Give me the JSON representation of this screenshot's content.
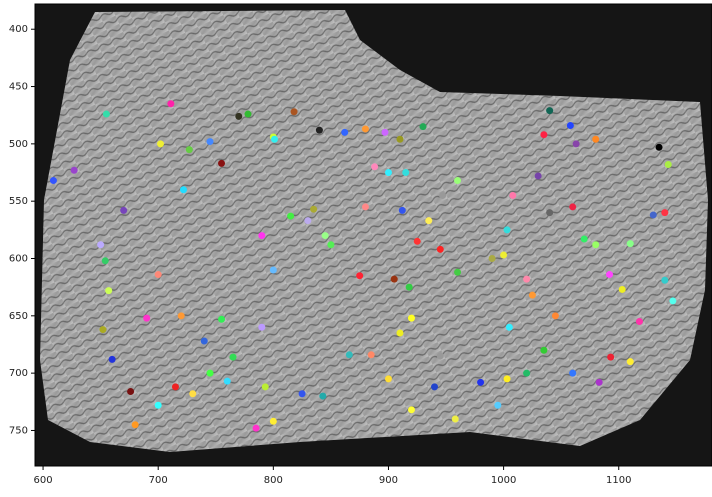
{
  "chart_data": {
    "type": "scatter",
    "x": [
      609,
      627,
      655,
      702,
      711,
      722,
      727,
      745,
      755,
      770,
      778,
      800,
      801,
      818,
      840,
      862,
      880,
      897,
      910,
      930,
      1040,
      1035,
      1058,
      1063,
      1080,
      1135,
      1143,
      1140,
      1130,
      1147,
      1140,
      1110,
      1092,
      1103,
      1118,
      1110,
      1093,
      1083,
      1060,
      1045,
      1035,
      1020,
      1003,
      995,
      980,
      958,
      945,
      940,
      920,
      900,
      885,
      866,
      843,
      825,
      800,
      793,
      785,
      760,
      745,
      730,
      715,
      700,
      680,
      676,
      660,
      652,
      654,
      657,
      650,
      670,
      700,
      690,
      720,
      740,
      755,
      765,
      790,
      800,
      790,
      815,
      830,
      835,
      850,
      875,
      905,
      918,
      910,
      920,
      945,
      960,
      990,
      1000,
      1003,
      1008,
      1030,
      1040,
      1060,
      1070,
      1080,
      1005,
      1020,
      1025,
      960,
      947,
      935,
      925,
      912,
      880,
      900,
      915,
      888,
      845
    ],
    "values": [
      532,
      523,
      474,
      500,
      465,
      540,
      505,
      498,
      517,
      476,
      474,
      494,
      496,
      472,
      488,
      490,
      487,
      490,
      496,
      485,
      471,
      492,
      484,
      500,
      496,
      503,
      518,
      560,
      562,
      637,
      619,
      587,
      614,
      627,
      655,
      690,
      686,
      708,
      700,
      650,
      680,
      700,
      705,
      728,
      708,
      740,
      685,
      712,
      732,
      705,
      684,
      684,
      720,
      718,
      742,
      712,
      748,
      707,
      700,
      718,
      712,
      728,
      745,
      716,
      688,
      662,
      602,
      628,
      588,
      558,
      614,
      652,
      650,
      672,
      653,
      686,
      660,
      610,
      580,
      563,
      567,
      557,
      588,
      615,
      618,
      625,
      665,
      652,
      592,
      612,
      600,
      597,
      575,
      545,
      528,
      560,
      555,
      583,
      588,
      660,
      618,
      632,
      532,
      545,
      567,
      585,
      558,
      555,
      525,
      525,
      520,
      580
    ],
    "colors": [
      "#3355ff",
      "#9944cc",
      "#33ddaa",
      "#eeee33",
      "#ff22aa",
      "#22ddff",
      "#66cc44",
      "#4488ff",
      "#881111",
      "#333322",
      "#33bb33",
      "#ccff33",
      "#33eeee",
      "#aa5522",
      "#222222",
      "#3366ff",
      "#ff9933",
      "#cc66ff",
      "#999922",
      "#22aa55",
      "#116655",
      "#ff2244",
      "#2244ff",
      "#8844aa",
      "#ff8822",
      "#000000",
      "#aaee44",
      "#ff3344",
      "#4466cc",
      "#55ffee",
      "#33cccc",
      "#88ff88",
      "#ff44ff",
      "#eeee22",
      "#ff33aa",
      "#ffee33",
      "#ee2233",
      "#aa33cc",
      "#3377ff",
      "#ff8833",
      "#33cc33",
      "#22bb66",
      "#ffee22",
      "#55ccff",
      "#2233ee",
      "#eeee44",
      "#999999",
      "#2244cc",
      "#ffff33",
      "#ffdd33",
      "#ff8866",
      "#33bbbb",
      "#22aaaa",
      "#3355ee",
      "#ffee33",
      "#bbee33",
      "#ff33cc",
      "#33ddff",
      "#44ff44",
      "#ffdd44",
      "#ee2222",
      "#33ffff",
      "#ff9922",
      "#771111",
      "#2233dd",
      "#aaaa22",
      "#33cc66",
      "#ccff55",
      "#bbaaff",
      "#7744bb",
      "#ff8877",
      "#ff33cc",
      "#ff9933",
      "#3366dd",
      "#33ee55",
      "#33dd55",
      "#bb99ff",
      "#66bbff",
      "#ff33ee",
      "#44ee44",
      "#bbaaee",
      "#aaaa33",
      "#55ee55",
      "#ff2233",
      "#993311",
      "#33cc44",
      "#eeee22",
      "#ffff22",
      "#ff2222",
      "#44cc44",
      "#aaaa44",
      "#eeee33",
      "#33dddd",
      "#ff77aa",
      "#7744aa",
      "#666666",
      "#ee2244",
      "#33ee66",
      "#99ff66",
      "#33eeff",
      "#ff88aa",
      "#ff9933",
      "#99ff77",
      "#999999",
      "#ffee55",
      "#ff3333",
      "#3355ee",
      "#ff8888",
      "#33eeff",
      "#33dddd",
      "#ff88bb",
      "#99ff88"
    ],
    "xlim": [
      593,
      1181
    ],
    "ylim": [
      781,
      378
    ],
    "xticks": [
      600,
      700,
      800,
      900,
      1000,
      1100
    ],
    "yticks": [
      400,
      450,
      500,
      550,
      600,
      650,
      700,
      750
    ]
  }
}
